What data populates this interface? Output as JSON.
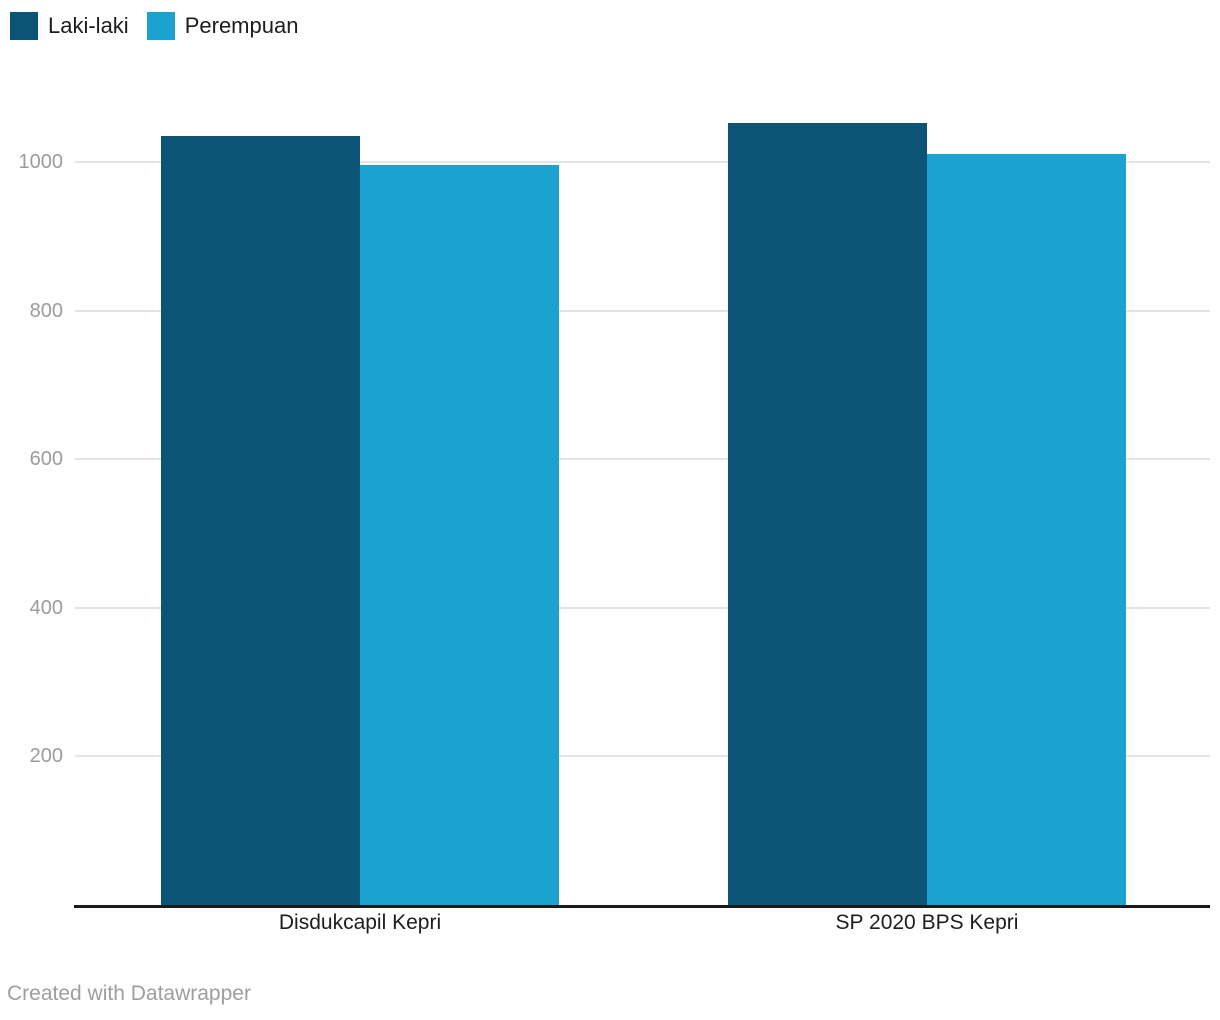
{
  "chart_data": {
    "type": "bar",
    "title": "",
    "xlabel": "",
    "ylabel": "",
    "categories": [
      "Disdukcapil Kepri",
      "SP 2020 BPS Kepri"
    ],
    "series": [
      {
        "name": "Laki-laki",
        "color": "#0b5475",
        "values": [
          1035,
          1053
        ]
      },
      {
        "name": "Perempuan",
        "color": "#1ca2cf",
        "values": [
          997,
          1011
        ]
      }
    ],
    "yticks": [
      200,
      400,
      600,
      800,
      1000
    ],
    "ylim": [
      0,
      1100
    ],
    "grid": true,
    "legend_position": "top-left"
  },
  "colors": {
    "axis": "#1a1a1a",
    "gridline": "#e4e4e4",
    "tick_label": "#9c9c9c",
    "category_label": "#1d1d1f",
    "credit": "#9e9e9e"
  },
  "footer": {
    "credit": "Created with Datawrapper"
  }
}
